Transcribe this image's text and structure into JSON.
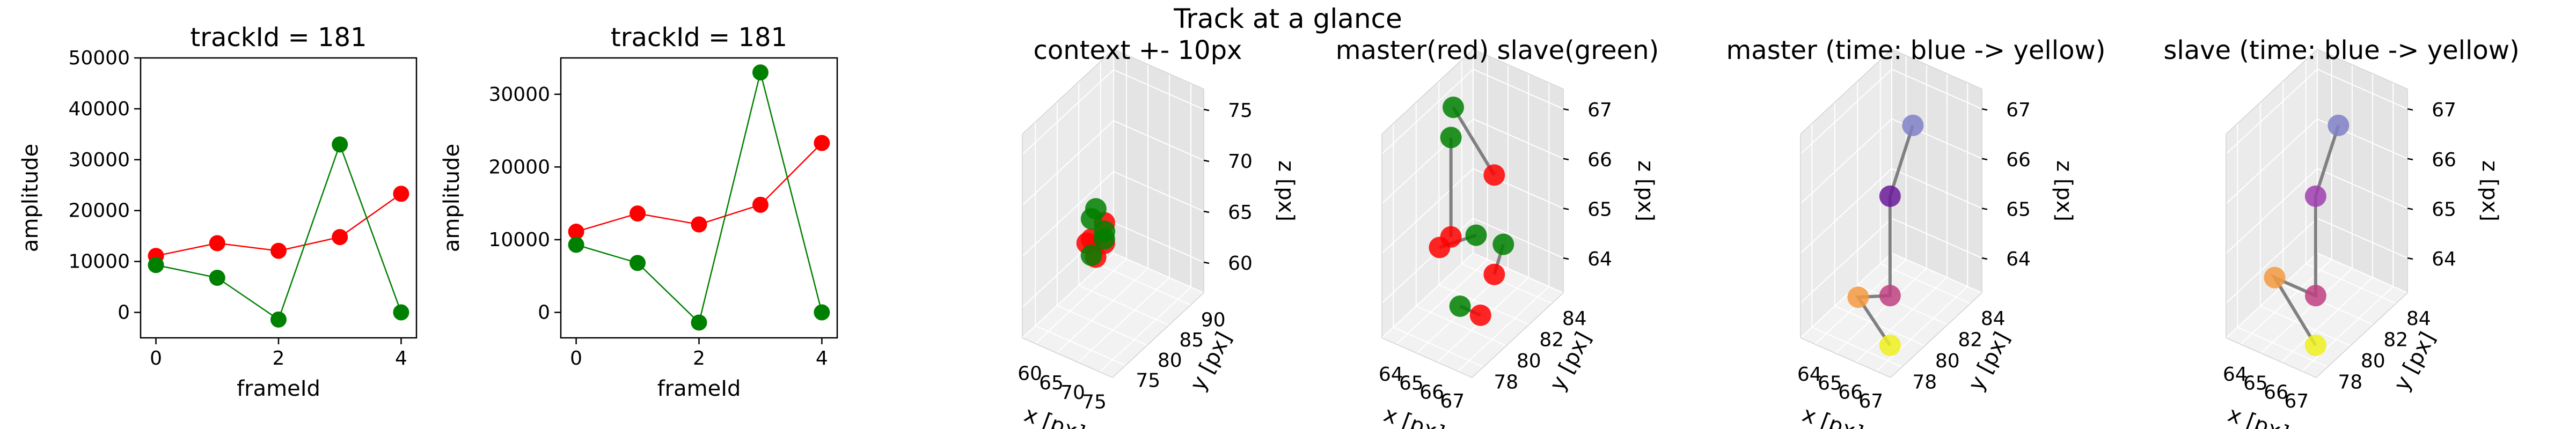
{
  "figure": {
    "suptitle": "Track at a glance"
  },
  "chart_data": [
    {
      "type": "line",
      "title": "trackId = 181",
      "xlabel": "frameId",
      "ylabel": "amplitude",
      "x": [
        0,
        1,
        2,
        3,
        4
      ],
      "xticks": [
        "0",
        "2",
        "4"
      ],
      "yticks": [
        "0",
        "10000",
        "20000",
        "30000",
        "40000",
        "50000"
      ],
      "ylim": [
        -5000,
        50000
      ],
      "series": [
        {
          "color": "#ff0000",
          "values": [
            11100,
            13600,
            12100,
            14800,
            23300
          ]
        },
        {
          "color": "#008000",
          "values": [
            9300,
            6800,
            -1400,
            33000,
            0
          ]
        }
      ]
    },
    {
      "type": "line",
      "title": "trackId = 181",
      "xlabel": "frameId",
      "ylabel": "amplitude",
      "x": [
        0,
        1,
        2,
        3,
        4
      ],
      "xticks": [
        "0",
        "2",
        "4"
      ],
      "yticks": [
        "0",
        "10000",
        "20000",
        "30000"
      ],
      "ylim": [
        -3500,
        35000
      ],
      "series": [
        {
          "color": "#ff0000",
          "values": [
            11100,
            13600,
            12100,
            14800,
            23300
          ]
        },
        {
          "color": "#008000",
          "values": [
            9300,
            6800,
            -1400,
            33000,
            0
          ]
        }
      ]
    },
    {
      "type": "scatter",
      "title": "context +- 10px",
      "xlabel": "x [px]",
      "ylabel": "y [px]",
      "zlabel": "z [px]",
      "xticks": [
        "60",
        "65",
        "70",
        "75"
      ],
      "yticks": [
        "75",
        "80",
        "85",
        "90"
      ],
      "zticks": [
        "60",
        "65",
        "70",
        "75"
      ],
      "series": [
        {
          "color": "#ff0000",
          "points": [
            [
              66,
              82,
              66
            ],
            [
              66,
              82,
              64
            ],
            [
              67,
              79,
              64
            ],
            [
              65,
              80,
              65
            ],
            [
              65,
              79,
              65
            ]
          ]
        },
        {
          "color": "#008000",
          "points": [
            [
              64,
              82,
              67
            ],
            [
              67,
              81,
              65
            ],
            [
              66,
              79,
              64
            ],
            [
              65,
              80,
              67
            ],
            [
              64,
              84,
              64
            ]
          ]
        }
      ]
    },
    {
      "type": "scatter",
      "title": "master(red) slave(green)",
      "xlabel": "x [px]",
      "ylabel": "y [px]",
      "zlabel": "z [px]",
      "xticks": [
        "64",
        "65",
        "66",
        "67"
      ],
      "yticks": [
        "78",
        "80",
        "82",
        "84"
      ],
      "zticks": [
        "64",
        "65",
        "66",
        "67"
      ],
      "series": [
        {
          "color": "#ff0000",
          "points": [
            [
              66,
              82,
              66
            ],
            [
              66,
              82,
              64
            ],
            [
              67,
              79,
              64
            ],
            [
              65,
              80,
              65
            ],
            [
              65,
              79,
              65
            ]
          ]
        },
        {
          "color": "#008000",
          "points": [
            [
              64,
              82,
              67
            ],
            [
              67,
              81,
              65
            ],
            [
              66,
              79,
              64
            ],
            [
              65,
              80,
              67
            ],
            [
              64,
              84,
              64
            ]
          ]
        }
      ]
    },
    {
      "type": "scatter",
      "title": "master (time: blue -> yellow)",
      "xlabel": "x [px]",
      "ylabel": "y [px]",
      "zlabel": "z [px]",
      "xticks": [
        "64",
        "65",
        "66",
        "67"
      ],
      "yticks": [
        "78",
        "80",
        "82",
        "84"
      ],
      "zticks": [
        "64",
        "65",
        "66",
        "67"
      ],
      "points": [
        [
          66,
          82,
          67
        ],
        [
          66,
          80,
          66
        ],
        [
          66,
          80,
          64
        ],
        [
          65,
          79,
          64
        ],
        [
          66,
          80,
          63
        ]
      ],
      "colors": [
        "#8080c8",
        "#6a1a9a",
        "#c04080",
        "#f59a40",
        "#f0f020"
      ]
    },
    {
      "type": "scatter",
      "title": "slave (time: blue -> yellow)",
      "xlabel": "x [px]",
      "ylabel": "y [px]",
      "zlabel": "z [px]",
      "xticks": [
        "64",
        "65",
        "66",
        "67"
      ],
      "yticks": [
        "78",
        "80",
        "82",
        "84"
      ],
      "zticks": [
        "64",
        "65",
        "66",
        "67"
      ],
      "points": [
        [
          66,
          82,
          67
        ],
        [
          66,
          80,
          66
        ],
        [
          66,
          80,
          64
        ],
        [
          64,
          80,
          64
        ],
        [
          66,
          80,
          63
        ]
      ],
      "colors": [
        "#8080c8",
        "#a040b0",
        "#c04080",
        "#f59a40",
        "#f0f020"
      ]
    }
  ]
}
